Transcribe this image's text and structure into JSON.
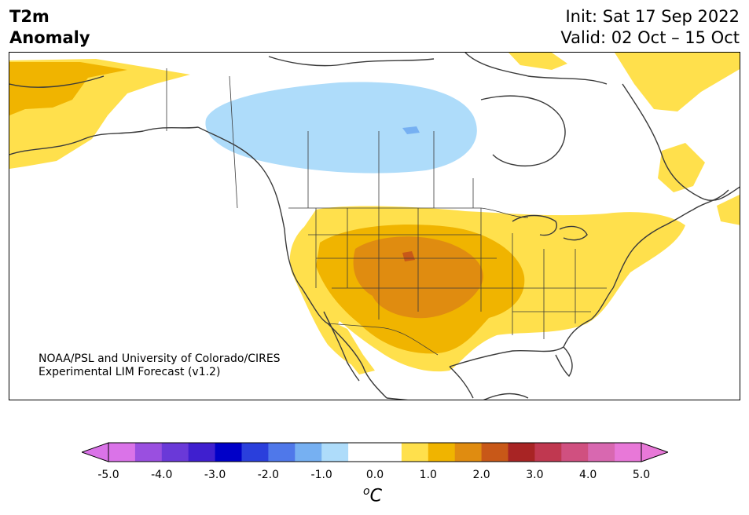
{
  "header": {
    "variable": "T2m",
    "subtitle": "Anomaly",
    "init": "Init: Sat 17 Sep 2022",
    "valid": "Valid: 02 Oct – 15 Oct"
  },
  "credit": {
    "line1": "NOAA/PSL and University of Colorado/CIRES",
    "line2": "Experimental LIM Forecast (v1.2)"
  },
  "colorbar": {
    "ticks": [
      "-5.0",
      "-4.0",
      "-3.0",
      "-2.0",
      "-1.0",
      "0.0",
      "1.0",
      "2.0",
      "3.0",
      "4.0",
      "5.0"
    ],
    "unit_symbol": "o",
    "unit_letter": "C",
    "colors": [
      "#da73e8",
      "#9a4fe0",
      "#6a39d8",
      "#3f1fcf",
      "#0000c8",
      "#2a3fdc",
      "#4f78ea",
      "#76b0f2",
      "#aedcfa",
      "#ffffff",
      "#ffffff",
      "#ffe04c",
      "#f0b400",
      "#e08c10",
      "#c85818",
      "#a82424",
      "#c03850",
      "#d05080",
      "#d868b0",
      "#e878d8"
    ],
    "under_color": "#da73e8",
    "over_color": "#e878d8"
  },
  "map": {
    "region": "North America",
    "anomaly_colors": {
      "cold_1": "#aedcfa",
      "cold_2": "#76b0f2",
      "warm_1": "#ffe04c",
      "warm_2": "#f0b400",
      "warm_3": "#e08c10",
      "warm_4": "#c85818"
    }
  }
}
